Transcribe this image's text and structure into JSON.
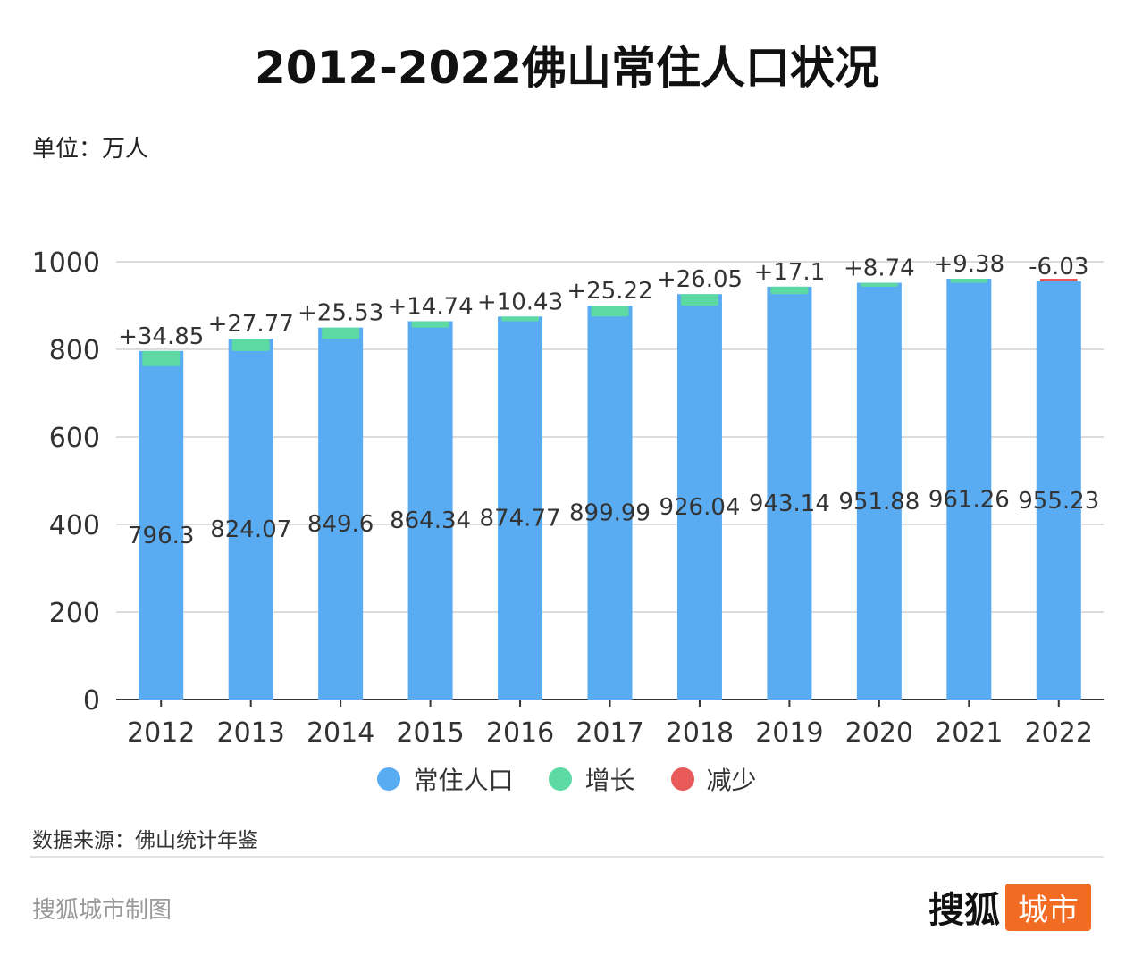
{
  "title": "2012-2022佛山常住人口状况",
  "unit_label": "单位：万人",
  "source_label": "数据来源：佛山统计年鉴",
  "credit_label": "搜狐城市制图",
  "logo": {
    "main": "搜狐",
    "badge": "城市"
  },
  "colors": {
    "population": "#5aacf2",
    "increase": "#5dd9a4",
    "decrease": "#e85a5a",
    "grid": "#dddddd",
    "axis": "#333333"
  },
  "legend": [
    {
      "label": "常住人口",
      "color": "#5aacf2"
    },
    {
      "label": "增长",
      "color": "#5dd9a4"
    },
    {
      "label": "减少",
      "color": "#e85a5a"
    }
  ],
  "chart_data": {
    "type": "bar",
    "categories": [
      "2012",
      "2013",
      "2014",
      "2015",
      "2016",
      "2017",
      "2018",
      "2019",
      "2020",
      "2021",
      "2022"
    ],
    "series": [
      {
        "name": "常住人口",
        "values": [
          796.3,
          824.07,
          849.6,
          864.34,
          874.77,
          899.99,
          926.04,
          943.14,
          951.88,
          961.26,
          955.23
        ]
      },
      {
        "name": "增长/减少",
        "values": [
          34.85,
          27.77,
          25.53,
          14.74,
          10.43,
          25.22,
          26.05,
          17.1,
          8.74,
          9.38,
          -6.03
        ]
      }
    ],
    "value_labels": [
      "796.3",
      "824.07",
      "849.6",
      "864.34",
      "874.77",
      "899.99",
      "926.04",
      "943.14",
      "951.88",
      "961.26",
      "955.23"
    ],
    "change_labels": [
      "+34.85",
      "+27.77",
      "+25.53",
      "+14.74",
      "+10.43",
      "+25.22",
      "+26.05",
      "+17.1",
      "+8.74",
      "+9.38",
      "-6.03"
    ],
    "yticks": [
      0,
      200,
      400,
      600,
      800,
      1000
    ],
    "ylim": [
      0,
      1000
    ],
    "grid": true,
    "legend_position": "bottom"
  }
}
